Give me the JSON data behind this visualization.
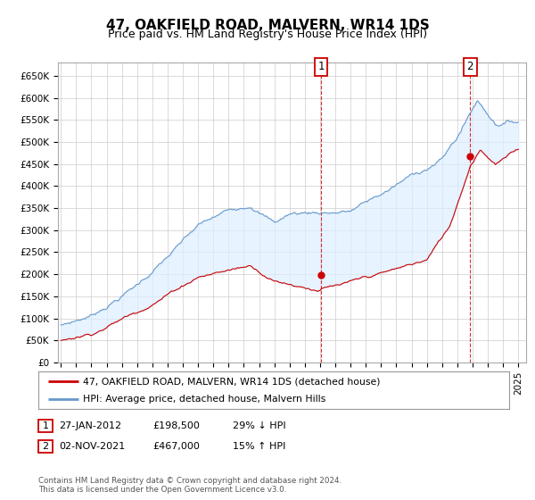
{
  "title": "47, OAKFIELD ROAD, MALVERN, WR14 1DS",
  "subtitle": "Price paid vs. HM Land Registry's House Price Index (HPI)",
  "background_color": "#ffffff",
  "plot_bg_color": "#ffffff",
  "grid_color": "#cccccc",
  "hpi_color": "#6699cc",
  "hpi_fill_color": "#ddeeff",
  "price_color": "#cc0000",
  "ylim": [
    0,
    680000
  ],
  "yticks": [
    0,
    50000,
    100000,
    150000,
    200000,
    250000,
    300000,
    350000,
    400000,
    450000,
    500000,
    550000,
    600000,
    650000
  ],
  "ytick_labels": [
    "£0",
    "£50K",
    "£100K",
    "£150K",
    "£200K",
    "£250K",
    "£300K",
    "£350K",
    "£400K",
    "£450K",
    "£500K",
    "£550K",
    "£600K",
    "£650K"
  ],
  "sale1_date": 2012.07,
  "sale1_price": 198500,
  "sale1_label": "1",
  "sale2_date": 2021.84,
  "sale2_price": 467000,
  "sale2_label": "2",
  "legend_line1": "47, OAKFIELD ROAD, MALVERN, WR14 1DS (detached house)",
  "legend_line2": "HPI: Average price, detached house, Malvern Hills",
  "table_row1": [
    "1",
    "27-JAN-2012",
    "£198,500",
    "29% ↓ HPI"
  ],
  "table_row2": [
    "2",
    "02-NOV-2021",
    "£467,000",
    "15% ↑ HPI"
  ],
  "footnote": "Contains HM Land Registry data © Crown copyright and database right 2024.\nThis data is licensed under the Open Government Licence v3.0.",
  "title_fontsize": 11,
  "subtitle_fontsize": 9,
  "tick_fontsize": 7.5
}
